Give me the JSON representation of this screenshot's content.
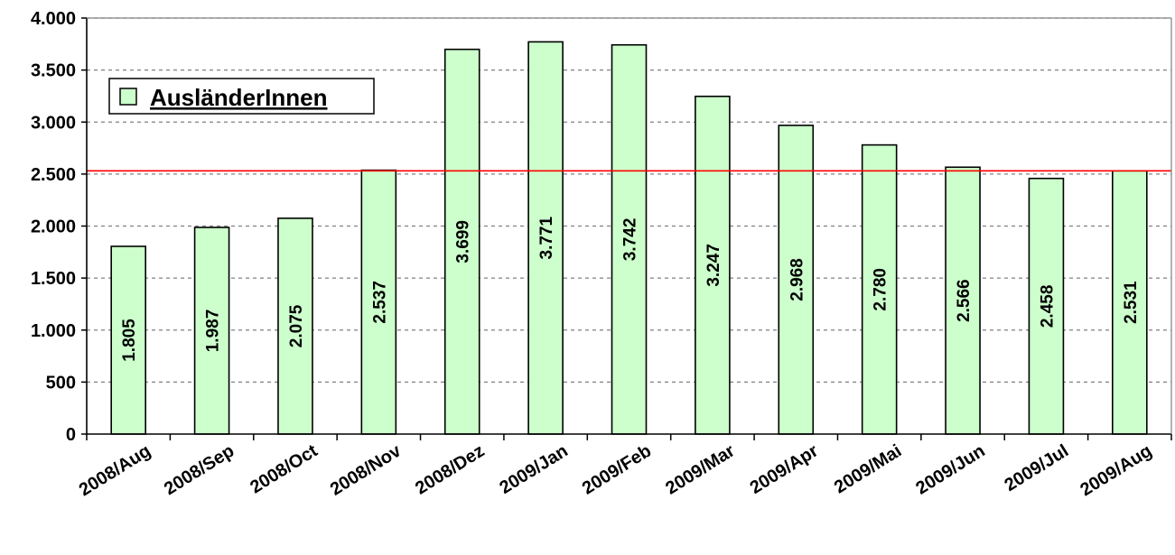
{
  "chart_data": {
    "type": "bar",
    "categories": [
      "2008/Aug",
      "2008/Sep",
      "2008/Oct",
      "2008/Nov",
      "2008/Dez",
      "2009/Jan",
      "2009/Feb",
      "2009/Mar",
      "2009/Apr",
      "2009/Mai",
      "2009/Jun",
      "2009/Jul",
      "2009/Aug"
    ],
    "series": [
      {
        "name": "AusländerInnen",
        "values": [
          1805,
          1987,
          2075,
          2537,
          3699,
          3771,
          3742,
          3247,
          2968,
          2780,
          2566,
          2458,
          2531
        ],
        "labels": [
          "1.805",
          "1.987",
          "2.075",
          "2.537",
          "3.699",
          "3.771",
          "3.742",
          "3.247",
          "2.968",
          "2.780",
          "2.566",
          "2.458",
          "2.531"
        ]
      }
    ],
    "ylim": [
      0,
      4000
    ],
    "yticks": [
      0,
      500,
      1000,
      1500,
      2000,
      2500,
      3000,
      3500,
      4000
    ],
    "ytick_labels": [
      "0",
      "500",
      "1.000",
      "1.500",
      "2.000",
      "2.500",
      "3.000",
      "3.500",
      "4.000"
    ],
    "reference_line": 2531,
    "grid": true,
    "legend_position": "top-left",
    "colors": {
      "bar_fill": "#ccffcc",
      "bar_stroke": "#000000",
      "reference_line": "#ff0000",
      "grid": "#808080"
    }
  }
}
